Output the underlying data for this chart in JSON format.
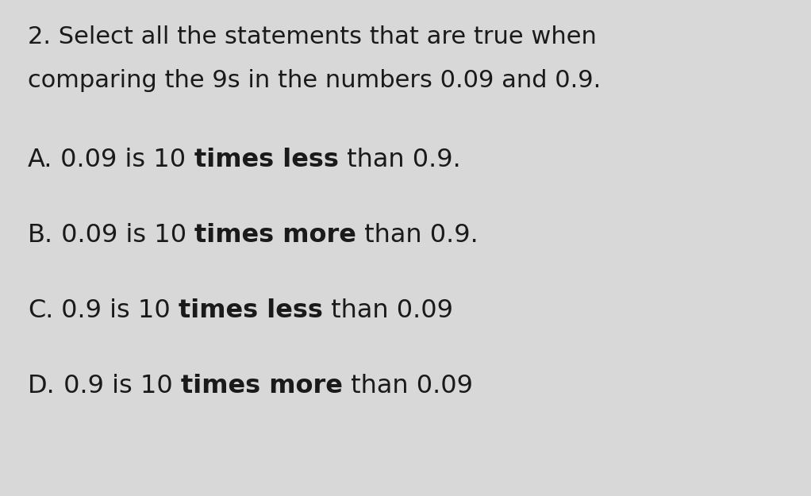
{
  "background_color": "#d8d8d8",
  "text_color": "#1a1a1a",
  "question_line1": "2. Select all the statements that are true when",
  "question_line2": "comparing the 9s in the numbers 0.09 and 0.9.",
  "options": [
    {
      "label": "A.",
      "parts": [
        {
          "text": " 0.09 is 10 ",
          "bold": false
        },
        {
          "text": "times less",
          "bold": true
        },
        {
          "text": " than 0.9.",
          "bold": false
        }
      ]
    },
    {
      "label": "B.",
      "parts": [
        {
          "text": " 0.09 is 10 ",
          "bold": false
        },
        {
          "text": "times more",
          "bold": true
        },
        {
          "text": " than 0.9.",
          "bold": false
        }
      ]
    },
    {
      "label": "C.",
      "parts": [
        {
          "text": " 0.9 is 10 ",
          "bold": false
        },
        {
          "text": "times less",
          "bold": true
        },
        {
          "text": " than 0.09",
          "bold": false
        }
      ]
    },
    {
      "label": "D.",
      "parts": [
        {
          "text": " 0.9 is 10 ",
          "bold": false
        },
        {
          "text": "times more",
          "bold": true
        },
        {
          "text": " than 0.09",
          "bold": false
        }
      ]
    }
  ],
  "question_fontsize": 22,
  "option_fontsize": 23,
  "figwidth": 10.22,
  "figheight": 6.25,
  "dpi": 100
}
